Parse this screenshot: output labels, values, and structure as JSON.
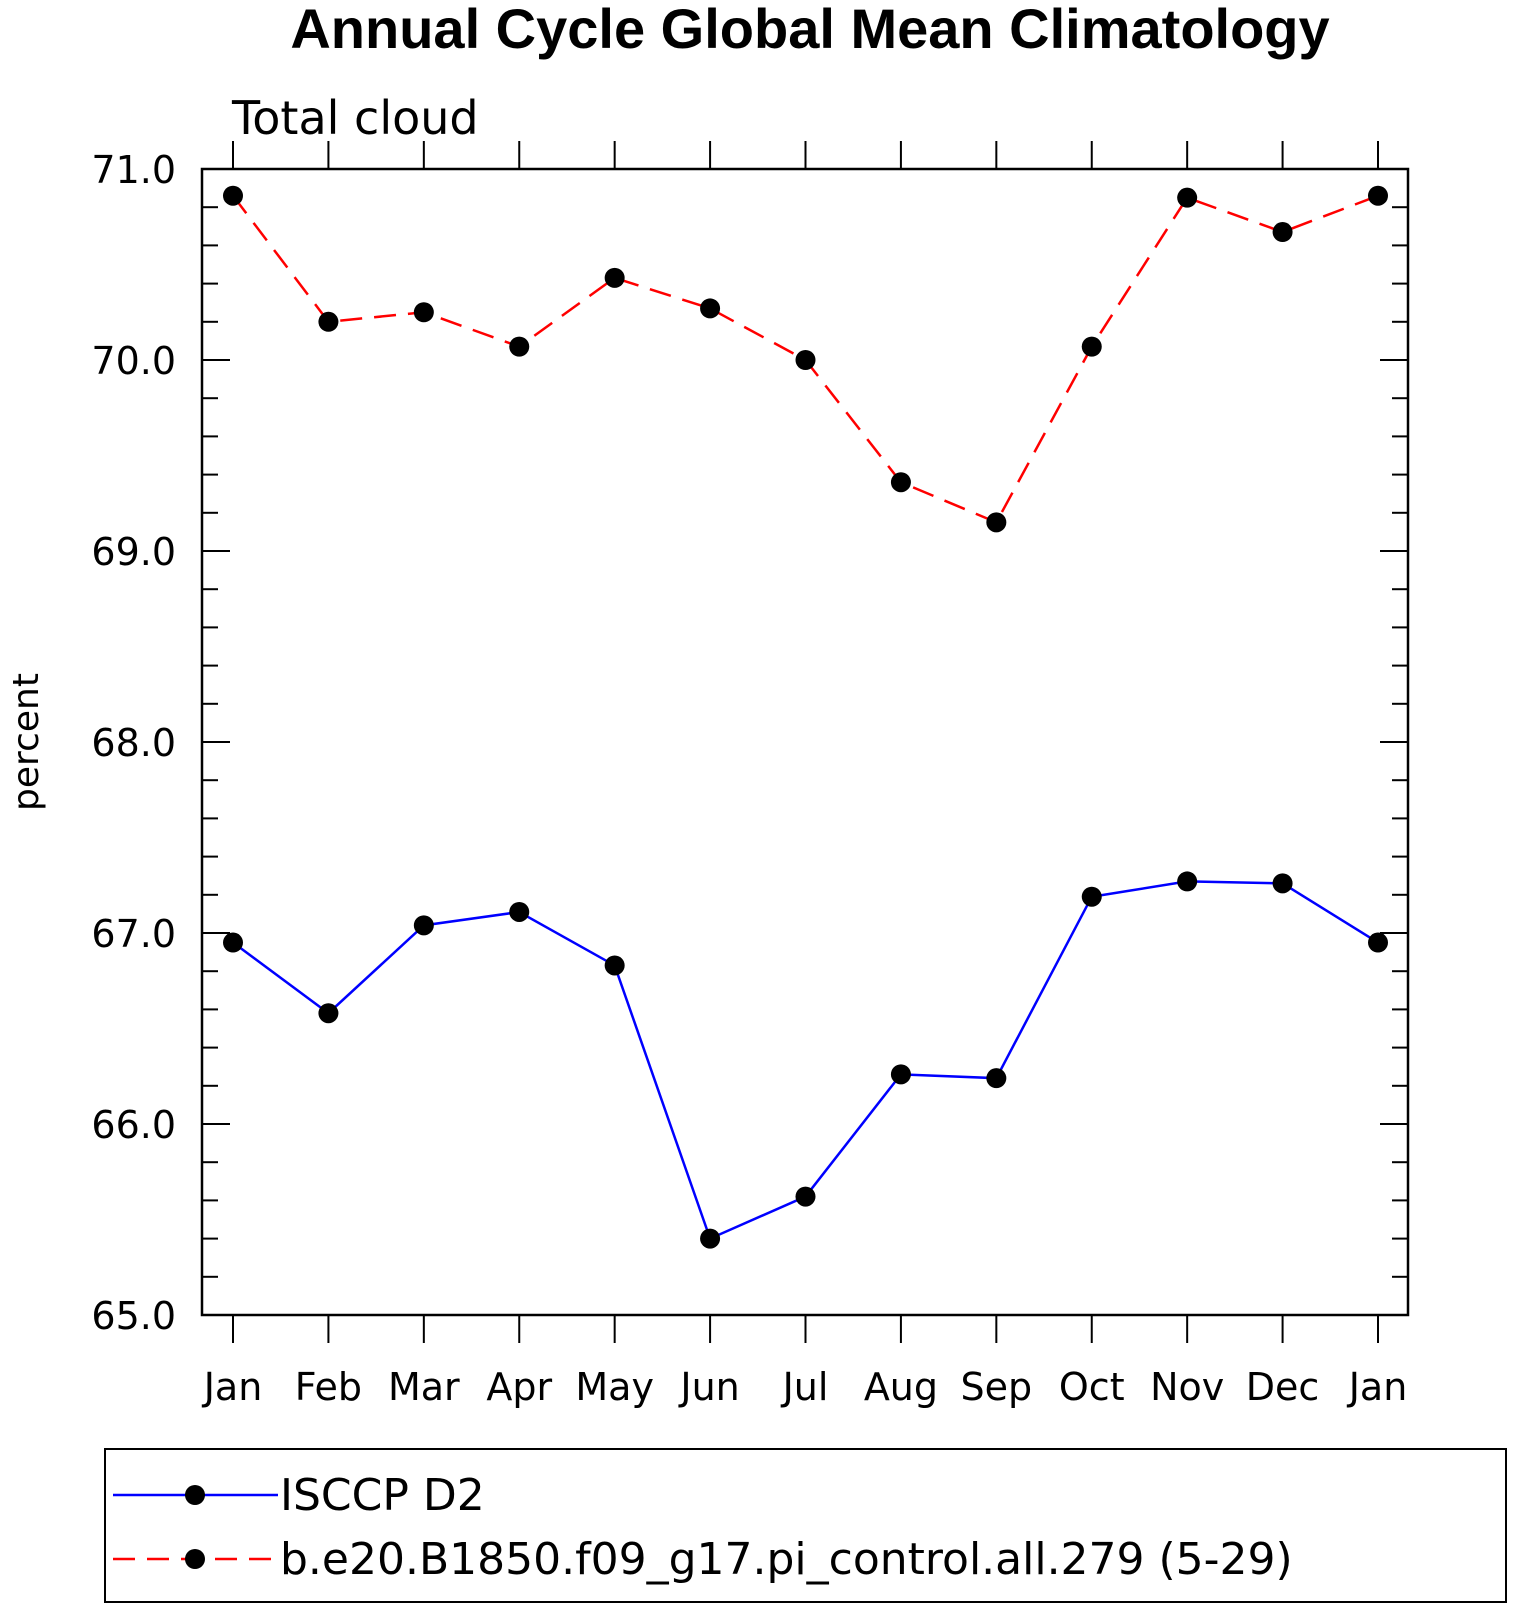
{
  "chart_data": {
    "type": "line",
    "title": "Annual Cycle Global Mean Climatology",
    "subtitle": "Total cloud",
    "ylabel": "percent",
    "xlabel": "",
    "ylim": [
      65.0,
      71.0
    ],
    "yticks": [
      "65.0",
      "66.0",
      "67.0",
      "68.0",
      "69.0",
      "70.0",
      "71.0"
    ],
    "categories": [
      "Jan",
      "Feb",
      "Mar",
      "Apr",
      "May",
      "Jun",
      "Jul",
      "Aug",
      "Sep",
      "Oct",
      "Nov",
      "Dec",
      "Jan"
    ],
    "series": [
      {
        "name": "ISCCP D2",
        "color": "#0000ff",
        "dash": "solid",
        "values": [
          66.95,
          66.58,
          67.04,
          67.11,
          66.83,
          65.4,
          65.62,
          66.26,
          66.24,
          67.19,
          67.27,
          67.26,
          66.95
        ]
      },
      {
        "name": "b.e20.B1850.f09_g17.pi_control.all.279 (5-29)",
        "color": "#ff0000",
        "dash": "dashed",
        "values": [
          70.86,
          70.2,
          70.25,
          70.07,
          70.43,
          70.27,
          70.0,
          69.36,
          69.15,
          70.07,
          70.85,
          70.67,
          70.86
        ]
      }
    ],
    "legend_position": "bottom",
    "grid": false
  }
}
